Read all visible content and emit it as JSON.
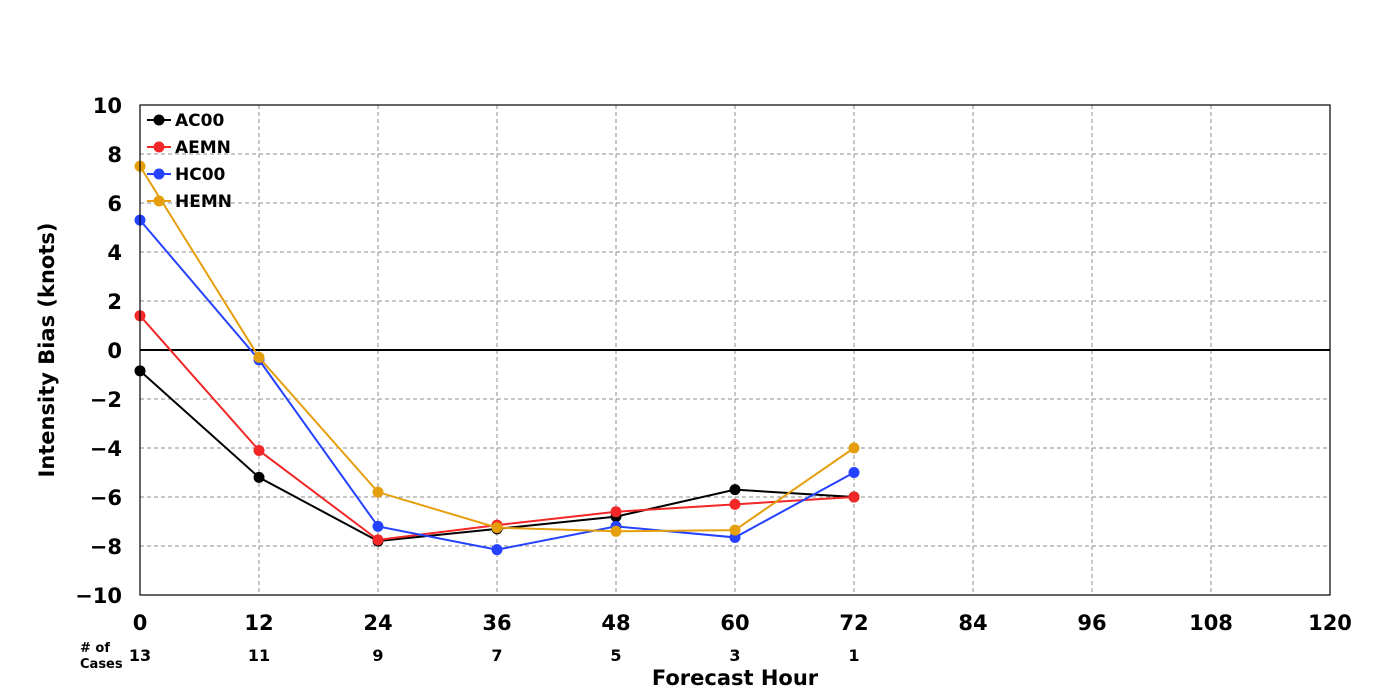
{
  "chart_data": {
    "type": "line",
    "title": "",
    "xlabel": "Forecast Hour",
    "ylabel": "Intensity Bias (knots)",
    "xlim": [
      0,
      120
    ],
    "ylim": [
      -10,
      10
    ],
    "x_ticks": [
      0,
      12,
      24,
      36,
      48,
      60,
      72,
      84,
      96,
      108,
      120
    ],
    "x_tick_labels": [
      "0",
      "12",
      "24",
      "36",
      "48",
      "60",
      "72",
      "84",
      "96",
      "108",
      "120"
    ],
    "y_ticks": [
      -10,
      -8,
      -6,
      -4,
      -2,
      0,
      2,
      4,
      6,
      8,
      10
    ],
    "y_tick_labels": [
      "−10",
      "−8",
      "−6",
      "−4",
      "−2",
      "0",
      "2",
      "4",
      "6",
      "8",
      "10"
    ],
    "grid": true,
    "legend_position": "top-left",
    "cases_title": [
      "# of",
      "Cases"
    ],
    "cases": {
      "x": [
        0,
        12,
        24,
        36,
        48,
        60,
        72
      ],
      "labels": [
        "13",
        "11",
        "9",
        "7",
        "5",
        "3",
        "1"
      ]
    },
    "x": [
      0,
      12,
      24,
      36,
      48,
      60,
      72
    ],
    "series": [
      {
        "name": "AC00",
        "color": "#000000",
        "values": [
          -0.85,
          -5.2,
          -7.8,
          -7.3,
          -6.8,
          -5.7,
          -6.0
        ]
      },
      {
        "name": "AEMN",
        "color": "#f22727",
        "values": [
          1.4,
          -4.1,
          -7.75,
          -7.15,
          -6.6,
          -6.3,
          -6.0
        ]
      },
      {
        "name": "HC00",
        "color": "#2442ff",
        "values": [
          5.3,
          -0.4,
          -7.2,
          -8.15,
          -7.2,
          -7.65,
          -5.0
        ]
      },
      {
        "name": "HEMN",
        "color": "#e59f0e",
        "values": [
          7.5,
          -0.3,
          -5.8,
          -7.25,
          -7.4,
          -7.35,
          -4.0
        ]
      }
    ]
  }
}
